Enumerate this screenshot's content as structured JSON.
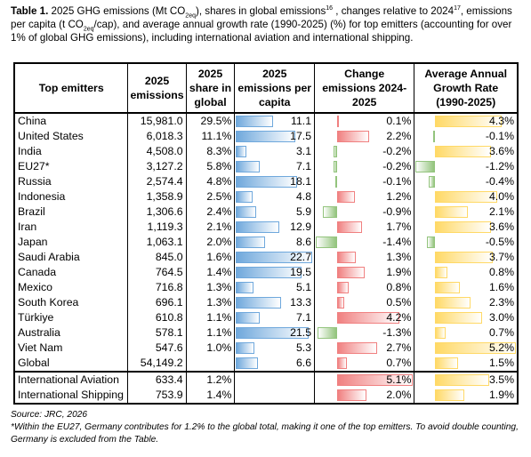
{
  "caption": [
    "Table 1.",
    " 2025 GHG emissions (Mt CO",
    "2eq",
    "), shares in global emissions",
    "16",
    " , changes relative to 2024",
    "17",
    ", emissions per capita (t CO",
    "2eq",
    "/cap), and average annual growth rate (1990-2025) (%) for top emitters (accounting for over 1% of global GHG emissions), including international aviation and international shipping."
  ],
  "table": {
    "headers": [
      "Top emitters",
      "2025 emissions",
      "2025 share in global",
      "2025 emissions per capita",
      "Change emissions 2024-2025",
      "Average Annual Growth Rate (1990-2025)"
    ],
    "bar_colors": {
      "per_capita": "#6fa8dc",
      "positive_change": "#f08080",
      "negative_change": "#93c47d",
      "positive_growth": "#ffd966",
      "negative_growth": "#93c47d"
    },
    "rows": [
      {
        "name": "China",
        "emissions": "15,981.0",
        "share": "29.5%",
        "per_capita": 11.1,
        "change": {
          "value": 0.1,
          "label": "0.1%"
        },
        "growth": {
          "value": 4.3,
          "label": "4.3%"
        }
      },
      {
        "name": "United States",
        "emissions": "6,018.3",
        "share": "11.1%",
        "per_capita": 17.5,
        "change": {
          "value": 2.2,
          "label": "2.2%"
        },
        "growth": {
          "value": -0.1,
          "label": "-0.1%"
        }
      },
      {
        "name": "India",
        "emissions": "4,508.0",
        "share": "8.3%",
        "per_capita": 3.1,
        "change": {
          "value": -0.2,
          "label": "-0.2%"
        },
        "growth": {
          "value": 3.6,
          "label": "3.6%"
        }
      },
      {
        "name": "EU27*",
        "emissions": "3,127.2",
        "share": "5.8%",
        "per_capita": 7.1,
        "change": {
          "value": -0.2,
          "label": "-0.2%"
        },
        "growth": {
          "value": -1.2,
          "label": "-1.2%"
        }
      },
      {
        "name": "Russia",
        "emissions": "2,574.4",
        "share": "4.8%",
        "per_capita": 18.1,
        "change": {
          "value": -0.1,
          "label": "-0.1%"
        },
        "growth": {
          "value": -0.4,
          "label": "-0.4%"
        }
      },
      {
        "name": "Indonesia",
        "emissions": "1,358.9",
        "share": "2.5%",
        "per_capita": 4.8,
        "change": {
          "value": 1.2,
          "label": "1.2%"
        },
        "growth": {
          "value": 4.0,
          "label": "4.0%"
        }
      },
      {
        "name": "Brazil",
        "emissions": "1,306.6",
        "share": "2.4%",
        "per_capita": 5.9,
        "change": {
          "value": -0.9,
          "label": "-0.9%"
        },
        "growth": {
          "value": 2.1,
          "label": "2.1%"
        }
      },
      {
        "name": "Iran",
        "emissions": "1,119.3",
        "share": "2.1%",
        "per_capita": 12.9,
        "change": {
          "value": 1.7,
          "label": "1.7%"
        },
        "growth": {
          "value": 3.6,
          "label": "3.6%"
        }
      },
      {
        "name": "Japan",
        "emissions": "1,063.1",
        "share": "2.0%",
        "per_capita": 8.6,
        "change": {
          "value": -1.4,
          "label": "-1.4%"
        },
        "growth": {
          "value": -0.5,
          "label": "-0.5%"
        }
      },
      {
        "name": "Saudi Arabia",
        "emissions": "845.0",
        "share": "1.6%",
        "per_capita": 22.7,
        "change": {
          "value": 1.3,
          "label": "1.3%"
        },
        "growth": {
          "value": 3.7,
          "label": "3.7%"
        }
      },
      {
        "name": "Canada",
        "emissions": "764.5",
        "share": "1.4%",
        "per_capita": 19.5,
        "change": {
          "value": 1.9,
          "label": "1.9%"
        },
        "growth": {
          "value": 0.8,
          "label": "0.8%"
        }
      },
      {
        "name": "Mexico",
        "emissions": "716.8",
        "share": "1.3%",
        "per_capita": 5.1,
        "change": {
          "value": 0.8,
          "label": "0.8%"
        },
        "growth": {
          "value": 1.6,
          "label": "1.6%"
        }
      },
      {
        "name": "South Korea",
        "emissions": "696.1",
        "share": "1.3%",
        "per_capita": 13.3,
        "change": {
          "value": 0.5,
          "label": "0.5%"
        },
        "growth": {
          "value": 2.3,
          "label": "2.3%"
        }
      },
      {
        "name": "Türkiye",
        "emissions": "610.8",
        "share": "1.1%",
        "per_capita": 7.1,
        "change": {
          "value": 4.2,
          "label": "4.2%"
        },
        "growth": {
          "value": 3.0,
          "label": "3.0%"
        }
      },
      {
        "name": "Australia",
        "emissions": "578.1",
        "share": "1.1%",
        "per_capita": 21.5,
        "change": {
          "value": -1.3,
          "label": "-1.3%"
        },
        "growth": {
          "value": 0.7,
          "label": "0.7%"
        }
      },
      {
        "name": "Viet Nam",
        "emissions": "547.6",
        "share": "1.0%",
        "per_capita": 5.3,
        "change": {
          "value": 2.7,
          "label": "2.7%"
        },
        "growth": {
          "value": 5.2,
          "label": "5.2%"
        }
      },
      {
        "name": "Global",
        "emissions": "54,149.2",
        "share": null,
        "per_capita": 6.6,
        "change": {
          "value": 0.7,
          "label": "0.7%"
        },
        "growth": {
          "value": 1.5,
          "label": "1.5%"
        }
      }
    ],
    "international_rows": [
      {
        "name": "International Aviation",
        "emissions": "633.4",
        "share": "1.2%",
        "per_capita": null,
        "change": {
          "value": 5.1,
          "label": "5.1%"
        },
        "growth": {
          "value": 3.5,
          "label": "3.5%"
        }
      },
      {
        "name": "International Shipping",
        "emissions": "753.9",
        "share": "1.4%",
        "per_capita": null,
        "change": {
          "value": 2.0,
          "label": "2.0%"
        },
        "growth": {
          "value": 1.9,
          "label": "1.9%"
        }
      }
    ]
  },
  "notes": [
    "Source: JRC, 2026",
    "*Within the EU27, Germany contributes for 1.2% to the global total, making it one of the top emitters. To avoid double counting, Germany is excluded from the Table."
  ]
}
